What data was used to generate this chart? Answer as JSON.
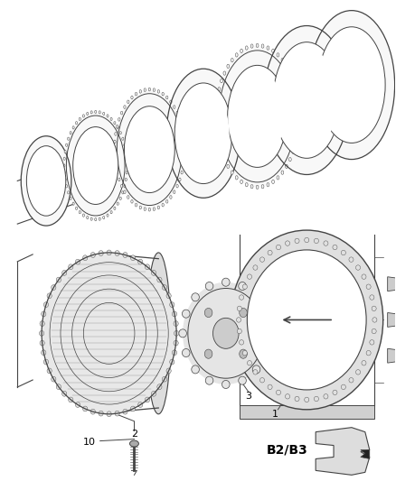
{
  "background_color": "#ffffff",
  "line_color": "#444444",
  "label_color": "#000000",
  "label_fontsize": 8,
  "fig_width": 4.38,
  "fig_height": 5.33,
  "dpi": 100,
  "b2b3_label": "B2/B3"
}
